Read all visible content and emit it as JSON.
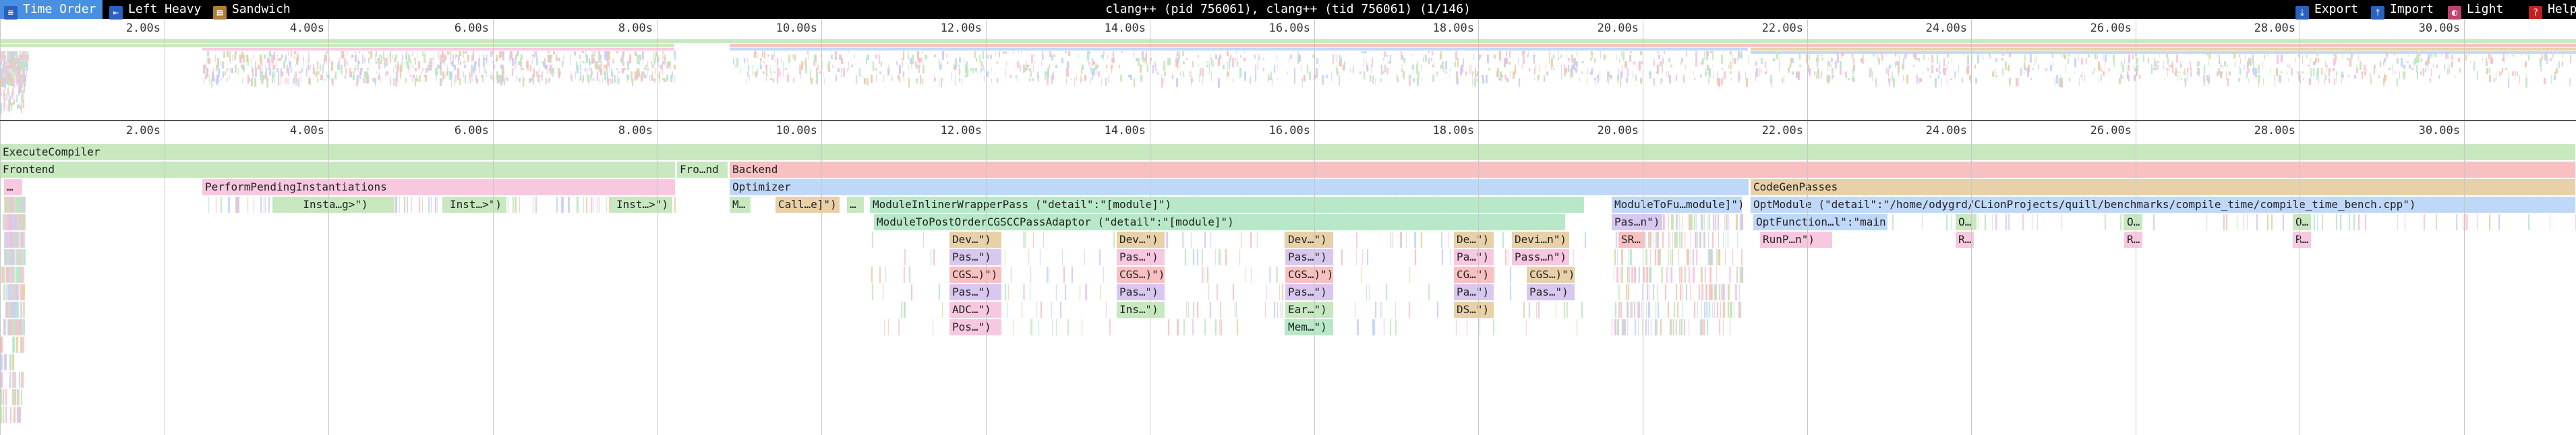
{
  "toolbar": {
    "time_order": "Time Order",
    "left_heavy": "Left Heavy",
    "sandwich": "Sandwich",
    "title": "clang++ (pid 756061), clang++ (tid 756061) (1/146)",
    "export": "Export",
    "import": "Import",
    "light": "Light",
    "help": "Help"
  },
  "ruler": {
    "labels": [
      "2.00s",
      "4.00s",
      "6.00s",
      "8.00s",
      "10.00s",
      "12.00s",
      "14.00s",
      "16.00s",
      "18.00s",
      "20.00s",
      "22.00s",
      "24.00s",
      "26.00s",
      "28.00s",
      "30.00s"
    ]
  },
  "frames": {
    "execute_compiler": "ExecuteCompiler",
    "frontend": "Frontend",
    "fro_nd": "Fro…nd",
    "backend": "Backend",
    "ellipsis_1": "…",
    "perform_pending": "PerformPendingInstantiations",
    "optimizer": "Optimizer",
    "codegen_passes": "CodeGenPasses",
    "insta_g": "Insta…g>\")",
    "inst_1": "Inst…>\")",
    "inst_2": "Inst…>\")",
    "m_dot": "M…",
    "call_e": "Call…e]\")",
    "dot_2": "…",
    "module_inliner": "ModuleInlinerWrapperPass (\"detail\":\"[module]\")",
    "module_to_fu": "ModuleToFu…module]\")",
    "opt_module": "OptModule (\"detail\":\"/home/odygrd/CLionProjects/quill/benchmarks/compile_time/compile_time_bench.cpp\")",
    "module_to_post": "ModuleToPostOrderCGSCCPassAdaptor (\"detail\":\"[module]\")",
    "pas_n": "Pas…n\")",
    "opt_function": "OptFunction…l\":\"main\")",
    "o_1": "O…",
    "o_2": "O…",
    "o_3": "O…",
    "dev_1": "Dev…\")",
    "dev_2": "Dev…\")",
    "dev_3": "Dev…\")",
    "de_4": "De…\")",
    "devi_n": "Devi…n\")",
    "sr": "SR…",
    "runp_n": "RunP…n\")",
    "r_1": "R…",
    "r_2": "R…",
    "r_3": "R…",
    "pas_a1": "Pas…\")",
    "pas_a2": "Pas…\")",
    "pas_a3": "Pas…\")",
    "pa_a4": "Pa…\")",
    "passn": "Pass…n\")",
    "cgs_1": "CGS…)\")",
    "cgs_2": "CGS…)\")",
    "cgs_3": "CGS…)\")",
    "cg_4": "CG…\")",
    "cgs_5": "CGS…)\")",
    "pas_b1": "Pas…\")",
    "pas_b2": "Pas…\")",
    "pas_b3": "Pas…\")",
    "pa_b4": "Pa…\")",
    "pas_b5": "Pas…\")",
    "adc": "ADC…\")",
    "ins": "Ins…\")",
    "ear": "Ear…\")",
    "ds": "DS…\")",
    "pos": "Pos…\")",
    "mem": "Mem…\")"
  },
  "colors": {
    "green": "#c8e8c0",
    "pink": "#f8c8e0",
    "salmon": "#f8c0c0",
    "blue": "#c0d8f8",
    "tan": "#e8d0a8",
    "lavender": "#d8c8f0",
    "mint": "#b8e8c8"
  }
}
